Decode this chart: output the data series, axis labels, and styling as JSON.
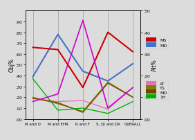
{
  "x_labels": [
    "M and O",
    "M and EHR",
    "R and F",
    "S, QI and DA",
    "OVERALL"
  ],
  "x_positions": [
    0,
    1,
    2,
    3,
    4
  ],
  "series": {
    "MS": {
      "color": "#cc0000",
      "values": [
        0.66,
        0.64,
        0.29,
        0.8,
        0.62
      ],
      "linewidth": 1.5
    },
    "MD": {
      "color": "#4472c4",
      "values": [
        0.39,
        0.78,
        0.44,
        0.35,
        0.51
      ],
      "linewidth": 1.5
    },
    "AT": {
      "color": "#e075b8",
      "values": [
        0.19,
        0.16,
        0.17,
        0.09,
        0.29
      ],
      "linewidth": 1.0
    },
    "TS": {
      "color": "#808000",
      "values": [
        0.2,
        0.14,
        0.07,
        0.34,
        0.2
      ],
      "linewidth": 1.0
    },
    "MO": {
      "color": "#7b3f00",
      "values": [
        0.19,
        0.15,
        0.06,
        0.33,
        0.2
      ],
      "linewidth": 1.0
    },
    "1H": {
      "color": "#00b000",
      "values": [
        0.37,
        0.08,
        0.1,
        0.05,
        0.16
      ],
      "linewidth": 1.0
    }
  },
  "pink_line": {
    "color": "#cc00cc",
    "values": [
      0.16,
      0.23,
      0.91,
      0.1,
      0.29
    ],
    "linewidth": 1.2
  },
  "ylim_left": [
    0.0,
    1.0
  ],
  "ylim_right": [
    0.0,
    0.5
  ],
  "yticks_left": [
    0.0,
    0.1,
    0.2,
    0.3,
    0.4,
    0.5,
    0.6,
    0.7,
    0.8,
    0.9
  ],
  "ytick_labels_left": [
    ".00",
    ".10",
    ".20",
    ".30",
    ".40",
    ".50",
    ".60",
    ".70",
    ".80",
    ".90"
  ],
  "yticks_right": [
    0.0,
    0.1,
    0.2,
    0.3,
    0.4,
    0.5
  ],
  "ytick_labels_right": [
    ".00",
    ".10",
    ".20",
    ".30",
    ".40",
    ".50"
  ],
  "ylabel_left": "Obj%",
  "ylabel_right": "Alt%",
  "background_color": "#dcdcdc",
  "legend_MS_color": "#cc0000",
  "legend_MD_color": "#4472c4",
  "legend_AT_color": "#e075b8",
  "legend_TS_color": "#808000",
  "legend_MO_color": "#7b3f00",
  "legend_1H_color": "#00b000"
}
